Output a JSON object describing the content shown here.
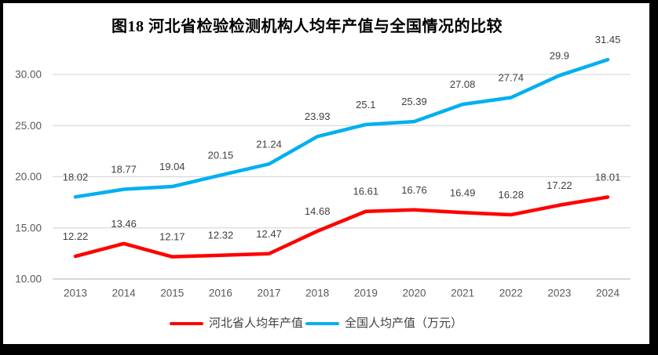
{
  "frame": {
    "border_color": "#000000",
    "panel_background": "#ffffff"
  },
  "chart_data": {
    "type": "line",
    "title": "图18 河北省检验检测机构人均年产值与全国情况的比较",
    "categories": [
      "2013",
      "2014",
      "2015",
      "2016",
      "2017",
      "2018",
      "2019",
      "2020",
      "2021",
      "2022",
      "2023",
      "2024"
    ],
    "series": [
      {
        "name": "河北省人均年产值",
        "color": "#ff0000",
        "values": [
          12.22,
          13.46,
          12.17,
          12.32,
          12.47,
          14.68,
          16.61,
          16.76,
          16.49,
          16.28,
          17.22,
          18.01
        ]
      },
      {
        "name": "全国人均产值（万元）",
        "color": "#00b0f0",
        "values": [
          18.02,
          18.77,
          19.04,
          20.15,
          21.24,
          23.93,
          25.1,
          25.39,
          27.08,
          27.74,
          29.9,
          31.45
        ]
      }
    ],
    "y_ticks": [
      "30.00",
      "25.00",
      "20.00",
      "15.00",
      "10.00"
    ],
    "ylim": [
      10,
      33
    ],
    "grid": "horizontal",
    "legend_position": "bottom",
    "data_labels": "above-points",
    "colors": {
      "gridline": "#d9d9d9",
      "axis_line": "#bfbfbf",
      "tick_label": "#595959",
      "data_label": "#404040",
      "legend_text": "#404040",
      "title_text": "#000000"
    }
  }
}
